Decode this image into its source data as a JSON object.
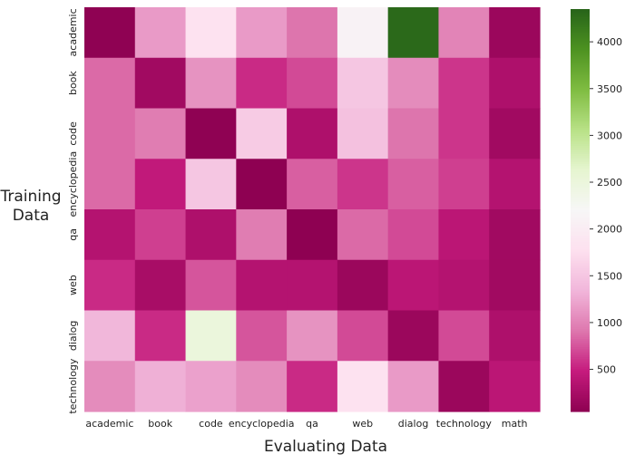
{
  "chart_data": {
    "type": "heatmap",
    "xlabel": "Evaluating Data",
    "ylabel": "Training Data",
    "x_categories": [
      "academic",
      "book",
      "code",
      "encyclopedia",
      "qa",
      "web",
      "dialog",
      "technology",
      "math"
    ],
    "y_categories": [
      "academic",
      "book",
      "code",
      "encyclopedia",
      "qa",
      "web",
      "dialog",
      "technology"
    ],
    "values": [
      [
        60,
        1150,
        1800,
        1150,
        900,
        2100,
        4300,
        1000,
        150
      ],
      [
        850,
        200,
        1100,
        550,
        700,
        1500,
        1050,
        600,
        300
      ],
      [
        850,
        950,
        60,
        1550,
        300,
        1450,
        900,
        600,
        200
      ],
      [
        850,
        450,
        1500,
        50,
        800,
        600,
        800,
        650,
        350
      ],
      [
        350,
        650,
        300,
        950,
        50,
        850,
        700,
        400,
        200
      ],
      [
        550,
        250,
        750,
        350,
        350,
        150,
        400,
        350,
        200
      ],
      [
        1350,
        550,
        2500,
        750,
        1100,
        700,
        150,
        700,
        300
      ],
      [
        1050,
        1300,
        1200,
        1050,
        550,
        1800,
        1150,
        150,
        400
      ]
    ],
    "colorbar": {
      "ticks": [
        500,
        1000,
        1500,
        2000,
        2500,
        3000,
        3500,
        4000
      ]
    },
    "vmin": 50,
    "vmax": 4350,
    "colormap": "PiYG",
    "grid": false
  }
}
